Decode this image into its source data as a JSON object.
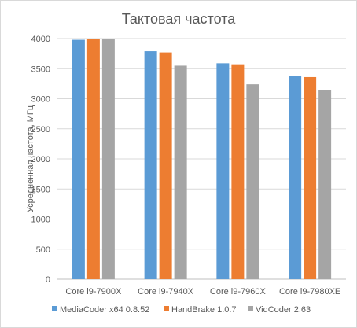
{
  "chart_data": {
    "type": "bar",
    "title": "Тактовая частота",
    "ylabel": "Усредненная частота, МГц",
    "xlabel": "",
    "categories": [
      "Core i9-7900X",
      "Core i9-7940X",
      "Core i9-7960X",
      "Core i9-7980XE"
    ],
    "series": [
      {
        "name": "MediaCoder x64 0.8.52",
        "color": "#5b9bd5",
        "values": [
          3980,
          3790,
          3590,
          3380
        ]
      },
      {
        "name": "HandBrake 1.0.7",
        "color": "#ed7d31",
        "values": [
          3990,
          3770,
          3560,
          3360
        ]
      },
      {
        "name": "VidCoder 2.63",
        "color": "#a5a5a5",
        "values": [
          3990,
          3550,
          3240,
          3150
        ]
      }
    ],
    "ylim": [
      0,
      4000
    ],
    "yticks": [
      0,
      500,
      1000,
      1500,
      2000,
      2500,
      3000,
      3500,
      4000
    ],
    "grid": true,
    "legend_position": "bottom"
  }
}
